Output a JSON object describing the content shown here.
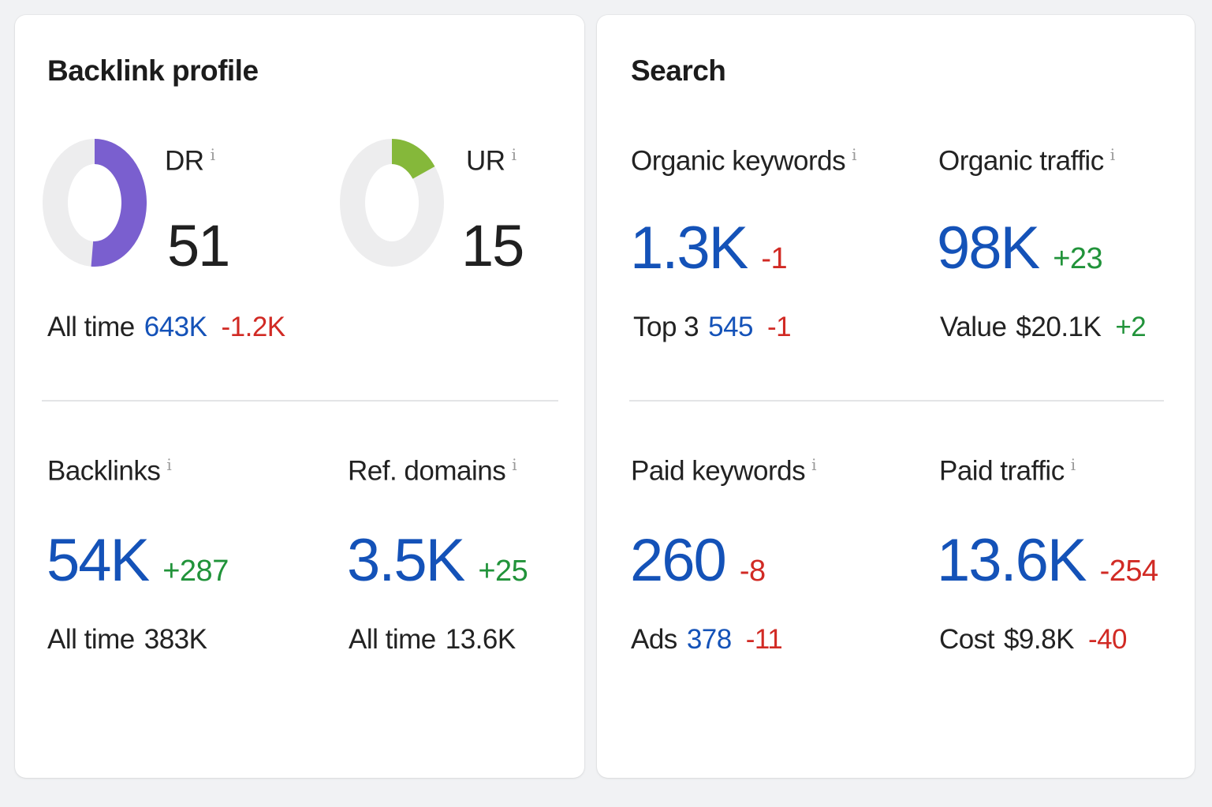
{
  "backlink_profile": {
    "title": "Backlink profile",
    "info_label": "i",
    "dr": {
      "label": "DR",
      "value": "51",
      "gauge_fraction": 0.51,
      "color": "#7a5fcf"
    },
    "ur": {
      "label": "UR",
      "value": "15",
      "gauge_fraction": 0.15,
      "color": "#85b83a"
    },
    "gauge_track_color": "#ededee",
    "all_time": {
      "label": "All time",
      "value": "643K",
      "delta": "-1.2K"
    },
    "backlinks": {
      "label": "Backlinks",
      "value": "54K",
      "delta": "+287",
      "sub_label": "All time",
      "sub_value": "383K"
    },
    "ref_domains": {
      "label": "Ref. domains",
      "value": "3.5K",
      "delta": "+25",
      "sub_label": "All time",
      "sub_value": "13.6K"
    }
  },
  "search": {
    "title": "Search",
    "info_label": "i",
    "organic_keywords": {
      "label": "Organic keywords",
      "value": "1.3K",
      "delta": "-1",
      "sub_label": "Top 3",
      "sub_value": "545",
      "sub_delta": "-1"
    },
    "organic_traffic": {
      "label": "Organic traffic",
      "value": "98K",
      "delta": "+23",
      "sub_label": "Value",
      "sub_value": "$20.1K",
      "sub_delta": "+2"
    },
    "paid_keywords": {
      "label": "Paid keywords",
      "value": "260",
      "delta": "-8",
      "sub_label": "Ads",
      "sub_value": "378",
      "sub_delta": "-11"
    },
    "paid_traffic": {
      "label": "Paid traffic",
      "value": "13.6K",
      "delta": "-254",
      "sub_label": "Cost",
      "sub_value": "$9.8K",
      "sub_delta": "-40"
    }
  },
  "colors": {
    "blue": "#1452b8",
    "green": "#21933a",
    "red": "#d12a24"
  }
}
